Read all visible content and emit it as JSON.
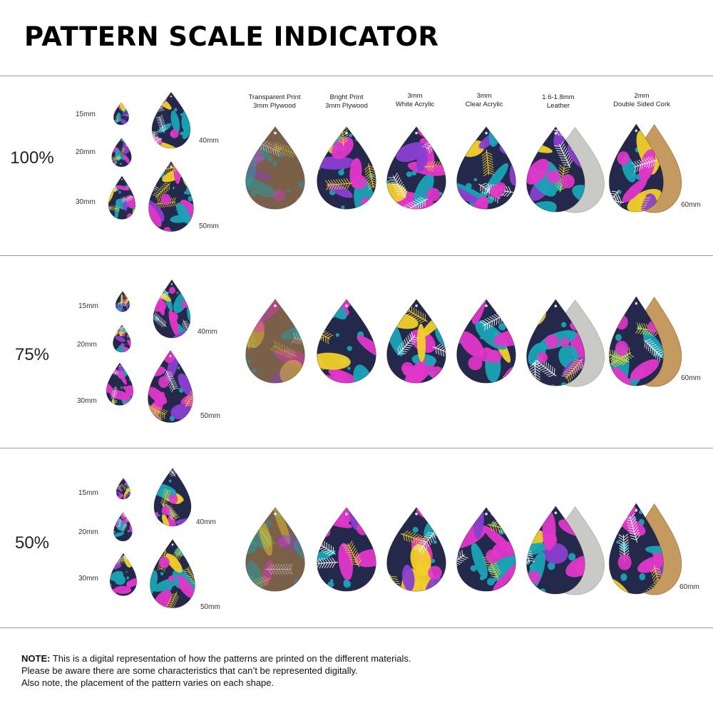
{
  "title": "PATTERN SCALE INDICATOR",
  "materials": [
    {
      "line1": "Transparent Print",
      "line2": "3mm Plywood"
    },
    {
      "line1": "Bright Print",
      "line2": "3mm Plywood"
    },
    {
      "line1": "3mm",
      "line2": "White Acrylic"
    },
    {
      "line1": "3mm",
      "line2": "Clear Acrylic"
    },
    {
      "line1": "1.6-1.8mm",
      "line2": "Leather"
    },
    {
      "line1": "2mm",
      "line2": "Double Sided Cork"
    }
  ],
  "sizes": [
    "15mm",
    "20mm",
    "30mm",
    "40mm",
    "50mm"
  ],
  "sample_size": "60mm",
  "scales": [
    "100%",
    "75%",
    "50%"
  ],
  "colors": {
    "navy": "#24284a",
    "teal": "#1aa3b5",
    "magenta": "#e236c9",
    "purple": "#8a3fd0",
    "yellow": "#f2cf2a",
    "white": "#f4f4f4",
    "wood": "#7a6048",
    "leather": "#c9cac6",
    "cork": "#c59a60"
  },
  "note": {
    "bold": "NOTE:",
    "line1": " This is a digital representation of how the patterns are printed on the different materials.",
    "line2": "Please be aware there are some characteristics that can’t be represented digitally.",
    "line3": "Also note, the placement of the pattern varies on each shape."
  }
}
